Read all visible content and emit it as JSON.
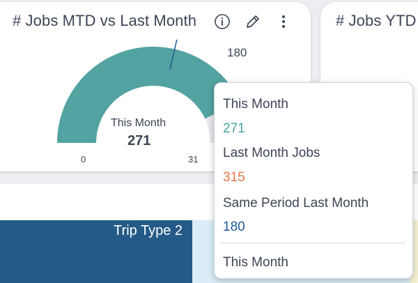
{
  "gauge_card": {
    "title": "# Jobs MTD vs Last Month",
    "icons": [
      "info-icon",
      "pencil-icon",
      "more-vertical-icon"
    ],
    "center_label": "This Month",
    "center_value": "271",
    "target_value": "180",
    "min_label": "0",
    "max_label_visible": "31"
  },
  "ytd_card": {
    "title": "# Jobs YTD"
  },
  "trip_panel": {
    "label": "Trip Type 2"
  },
  "tooltip": {
    "items": [
      {
        "label": "This Month",
        "value": "271"
      },
      {
        "label": "Last Month Jobs",
        "value": "315"
      },
      {
        "label": "Same Period Last Month",
        "value": "180"
      }
    ],
    "footer": "This Month"
  },
  "chart_data": {
    "type": "gauge",
    "title": "# Jobs MTD vs Last Month",
    "value": 271,
    "min": 0,
    "max": 315,
    "target": 180,
    "series": [
      {
        "name": "This Month",
        "values": [
          271
        ]
      },
      {
        "name": "Last Month Jobs",
        "values": [
          315
        ]
      },
      {
        "name": "Same Period Last Month",
        "values": [
          180
        ]
      }
    ]
  },
  "colors": {
    "gauge_fill": "#52a3a1",
    "gauge_track": "#e6e8eb",
    "target_marker": "#1f5a94",
    "this_month": "#4aa29e",
    "last_month": "#e8764a",
    "same_period": "#1f5a94",
    "trip_panel": "#245a87"
  }
}
